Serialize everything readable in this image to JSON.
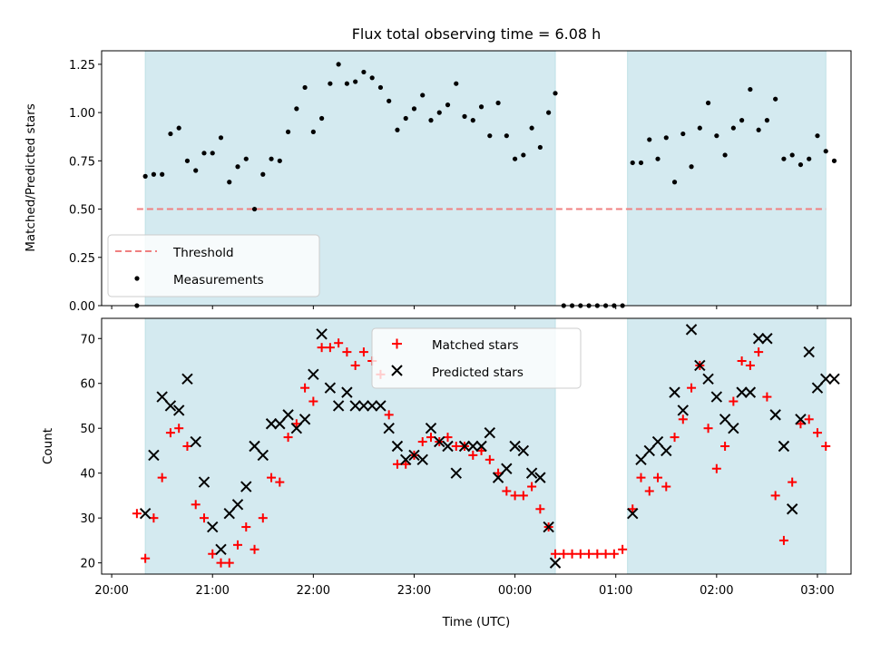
{
  "chart_data": [
    {
      "type": "scatter",
      "title": "Flux total observing time = 6.08 h",
      "ylabel": "Matched/Predicted stars",
      "ylim": [
        0,
        1.32
      ],
      "yticks": [
        0,
        0.25,
        0.5,
        0.75,
        1.0,
        1.25
      ],
      "ytick_labels": [
        "0.00",
        "0.25",
        "0.50",
        "0.75",
        "1.00",
        "1.25"
      ],
      "threshold": {
        "name": "Threshold",
        "value": 0.5,
        "x_range": [
          "20:15",
          "03:05"
        ],
        "color": "#f08080"
      },
      "shaded_intervals": [
        [
          "20:20",
          "00:24"
        ],
        [
          "01:07",
          "03:05"
        ]
      ],
      "shade_color": "#d4eaf0",
      "legend": [
        "Threshold",
        "Measurements"
      ],
      "legend_location": "lower left",
      "series": [
        {
          "name": "Measurements",
          "color": "#000000",
          "points": [
            [
              "20:15",
              0.0
            ],
            [
              "20:20",
              0.67
            ],
            [
              "20:25",
              0.68
            ],
            [
              "20:30",
              0.68
            ],
            [
              "20:35",
              0.89
            ],
            [
              "20:40",
              0.92
            ],
            [
              "20:45",
              0.75
            ],
            [
              "20:50",
              0.7
            ],
            [
              "20:55",
              0.79
            ],
            [
              "21:00",
              0.79
            ],
            [
              "21:05",
              0.87
            ],
            [
              "21:10",
              0.64
            ],
            [
              "21:15",
              0.72
            ],
            [
              "21:20",
              0.76
            ],
            [
              "21:25",
              0.5
            ],
            [
              "21:30",
              0.68
            ],
            [
              "21:35",
              0.76
            ],
            [
              "21:40",
              0.75
            ],
            [
              "21:45",
              0.9
            ],
            [
              "21:50",
              1.02
            ],
            [
              "21:55",
              1.13
            ],
            [
              "22:00",
              0.9
            ],
            [
              "22:05",
              0.97
            ],
            [
              "22:10",
              1.15
            ],
            [
              "22:15",
              1.25
            ],
            [
              "22:20",
              1.15
            ],
            [
              "22:25",
              1.16
            ],
            [
              "22:30",
              1.21
            ],
            [
              "22:35",
              1.18
            ],
            [
              "22:40",
              1.13
            ],
            [
              "22:45",
              1.06
            ],
            [
              "22:50",
              0.91
            ],
            [
              "22:55",
              0.97
            ],
            [
              "23:00",
              1.02
            ],
            [
              "23:05",
              1.09
            ],
            [
              "23:10",
              0.96
            ],
            [
              "23:15",
              1.0
            ],
            [
              "23:20",
              1.04
            ],
            [
              "23:25",
              1.15
            ],
            [
              "23:30",
              0.98
            ],
            [
              "23:35",
              0.96
            ],
            [
              "23:40",
              1.03
            ],
            [
              "23:45",
              0.88
            ],
            [
              "23:50",
              1.05
            ],
            [
              "23:55",
              0.88
            ],
            [
              "00:00",
              0.76
            ],
            [
              "00:05",
              0.78
            ],
            [
              "00:10",
              0.92
            ],
            [
              "00:15",
              0.82
            ],
            [
              "00:20",
              1.0
            ],
            [
              "00:24",
              1.1
            ],
            [
              "00:29",
              0.0
            ],
            [
              "00:34",
              0.0
            ],
            [
              "00:39",
              0.0
            ],
            [
              "00:44",
              0.0
            ],
            [
              "00:49",
              0.0
            ],
            [
              "00:54",
              0.0
            ],
            [
              "00:59",
              0.0
            ],
            [
              "01:04",
              0.0
            ],
            [
              "01:10",
              0.74
            ],
            [
              "01:15",
              0.74
            ],
            [
              "01:20",
              0.86
            ],
            [
              "01:25",
              0.76
            ],
            [
              "01:30",
              0.87
            ],
            [
              "01:35",
              0.64
            ],
            [
              "01:40",
              0.89
            ],
            [
              "01:45",
              0.72
            ],
            [
              "01:50",
              0.92
            ],
            [
              "01:55",
              1.05
            ],
            [
              "02:00",
              0.88
            ],
            [
              "02:05",
              0.78
            ],
            [
              "02:10",
              0.92
            ],
            [
              "02:15",
              0.96
            ],
            [
              "02:20",
              1.12
            ],
            [
              "02:25",
              0.91
            ],
            [
              "02:30",
              0.96
            ],
            [
              "02:35",
              1.07
            ],
            [
              "02:40",
              0.76
            ],
            [
              "02:45",
              0.78
            ],
            [
              "02:50",
              0.73
            ],
            [
              "02:55",
              0.76
            ],
            [
              "03:00",
              0.88
            ],
            [
              "03:05",
              0.8
            ],
            [
              "03:10",
              0.75
            ]
          ]
        }
      ]
    },
    {
      "type": "scatter",
      "xlabel": "Time (UTC)",
      "ylabel": "Count",
      "ylim": [
        17.5,
        74.5
      ],
      "yticks": [
        20,
        30,
        40,
        50,
        60,
        70
      ],
      "ytick_labels": [
        "20",
        "30",
        "40",
        "50",
        "60",
        "70"
      ],
      "xticks": [
        "20:00",
        "21:00",
        "22:00",
        "23:00",
        "00:00",
        "01:00",
        "02:00",
        "03:00"
      ],
      "xlim": [
        "19:54",
        "03:20"
      ],
      "shaded_intervals": [
        [
          "20:20",
          "00:24"
        ],
        [
          "01:07",
          "03:05"
        ]
      ],
      "shade_color": "#d4eaf0",
      "legend": [
        "Matched stars",
        "Predicted stars"
      ],
      "legend_location": "upper center",
      "series": [
        {
          "name": "Matched stars",
          "marker": "plus",
          "color": "#ff0000",
          "points": [
            [
              "20:15",
              31
            ],
            [
              "20:20",
              21
            ],
            [
              "20:25",
              30
            ],
            [
              "20:30",
              39
            ],
            [
              "20:35",
              49
            ],
            [
              "20:40",
              50
            ],
            [
              "20:45",
              46
            ],
            [
              "20:50",
              33
            ],
            [
              "20:55",
              30
            ],
            [
              "21:00",
              22
            ],
            [
              "21:05",
              20
            ],
            [
              "21:10",
              20
            ],
            [
              "21:15",
              24
            ],
            [
              "21:20",
              28
            ],
            [
              "21:25",
              23
            ],
            [
              "21:30",
              30
            ],
            [
              "21:35",
              39
            ],
            [
              "21:40",
              38
            ],
            [
              "21:45",
              48
            ],
            [
              "21:50",
              51
            ],
            [
              "21:55",
              59
            ],
            [
              "22:00",
              56
            ],
            [
              "22:05",
              68
            ],
            [
              "22:10",
              68
            ],
            [
              "22:15",
              69
            ],
            [
              "22:20",
              67
            ],
            [
              "22:25",
              64
            ],
            [
              "22:30",
              67
            ],
            [
              "22:35",
              65
            ],
            [
              "22:40",
              62
            ],
            [
              "22:45",
              53
            ],
            [
              "22:50",
              42
            ],
            [
              "22:55",
              42
            ],
            [
              "23:00",
              44
            ],
            [
              "23:05",
              47
            ],
            [
              "23:10",
              48
            ],
            [
              "23:15",
              47
            ],
            [
              "23:20",
              48
            ],
            [
              "23:25",
              46
            ],
            [
              "23:30",
              46
            ],
            [
              "23:35",
              44
            ],
            [
              "23:40",
              45
            ],
            [
              "23:45",
              43
            ],
            [
              "23:50",
              40
            ],
            [
              "23:55",
              36
            ],
            [
              "00:00",
              35
            ],
            [
              "00:05",
              35
            ],
            [
              "00:10",
              37
            ],
            [
              "00:15",
              32
            ],
            [
              "00:20",
              28
            ],
            [
              "00:24",
              22
            ],
            [
              "00:29",
              22
            ],
            [
              "00:34",
              22
            ],
            [
              "00:39",
              22
            ],
            [
              "00:44",
              22
            ],
            [
              "00:49",
              22
            ],
            [
              "00:54",
              22
            ],
            [
              "00:59",
              22
            ],
            [
              "01:04",
              23
            ],
            [
              "01:10",
              32
            ],
            [
              "01:15",
              39
            ],
            [
              "01:20",
              36
            ],
            [
              "01:25",
              39
            ],
            [
              "01:30",
              37
            ],
            [
              "01:35",
              48
            ],
            [
              "01:40",
              52
            ],
            [
              "01:45",
              59
            ],
            [
              "01:50",
              64
            ],
            [
              "01:55",
              50
            ],
            [
              "02:00",
              41
            ],
            [
              "02:05",
              46
            ],
            [
              "02:10",
              56
            ],
            [
              "02:15",
              65
            ],
            [
              "02:20",
              64
            ],
            [
              "02:25",
              67
            ],
            [
              "02:30",
              57
            ],
            [
              "02:35",
              35
            ],
            [
              "02:40",
              25
            ],
            [
              "02:45",
              38
            ],
            [
              "02:50",
              51
            ],
            [
              "02:55",
              52
            ],
            [
              "03:00",
              49
            ],
            [
              "03:05",
              46
            ]
          ]
        },
        {
          "name": "Predicted stars",
          "marker": "x",
          "color": "#000000",
          "points": [
            [
              "20:20",
              31
            ],
            [
              "20:25",
              44
            ],
            [
              "20:30",
              57
            ],
            [
              "20:35",
              55
            ],
            [
              "20:40",
              54
            ],
            [
              "20:45",
              61
            ],
            [
              "20:50",
              47
            ],
            [
              "20:55",
              38
            ],
            [
              "21:00",
              28
            ],
            [
              "21:05",
              23
            ],
            [
              "21:10",
              31
            ],
            [
              "21:15",
              33
            ],
            [
              "21:20",
              37
            ],
            [
              "21:25",
              46
            ],
            [
              "21:30",
              44
            ],
            [
              "21:35",
              51
            ],
            [
              "21:40",
              51
            ],
            [
              "21:45",
              53
            ],
            [
              "21:50",
              50
            ],
            [
              "21:55",
              52
            ],
            [
              "22:00",
              62
            ],
            [
              "22:05",
              71
            ],
            [
              "22:10",
              59
            ],
            [
              "22:15",
              55
            ],
            [
              "22:20",
              58
            ],
            [
              "22:25",
              55
            ],
            [
              "22:30",
              55
            ],
            [
              "22:35",
              55
            ],
            [
              "22:40",
              55
            ],
            [
              "22:45",
              50
            ],
            [
              "22:50",
              46
            ],
            [
              "22:55",
              43
            ],
            [
              "23:00",
              44
            ],
            [
              "23:05",
              43
            ],
            [
              "23:10",
              50
            ],
            [
              "23:15",
              47
            ],
            [
              "23:20",
              46
            ],
            [
              "23:25",
              40
            ],
            [
              "23:30",
              46
            ],
            [
              "23:35",
              46
            ],
            [
              "23:40",
              46
            ],
            [
              "23:45",
              49
            ],
            [
              "23:50",
              39
            ],
            [
              "23:55",
              41
            ],
            [
              "00:00",
              46
            ],
            [
              "00:05",
              45
            ],
            [
              "00:10",
              40
            ],
            [
              "00:15",
              39
            ],
            [
              "00:20",
              28
            ],
            [
              "00:24",
              20
            ],
            [
              "01:10",
              31
            ],
            [
              "01:15",
              43
            ],
            [
              "01:20",
              45
            ],
            [
              "01:25",
              47
            ],
            [
              "01:30",
              45
            ],
            [
              "01:35",
              58
            ],
            [
              "01:40",
              54
            ],
            [
              "01:45",
              72
            ],
            [
              "01:50",
              64
            ],
            [
              "01:55",
              61
            ],
            [
              "02:00",
              57
            ],
            [
              "02:05",
              52
            ],
            [
              "02:10",
              50
            ],
            [
              "02:15",
              58
            ],
            [
              "02:20",
              58
            ],
            [
              "02:25",
              70
            ],
            [
              "02:30",
              70
            ],
            [
              "02:35",
              53
            ],
            [
              "02:40",
              46
            ],
            [
              "02:45",
              32
            ],
            [
              "02:50",
              52
            ],
            [
              "02:55",
              67
            ],
            [
              "03:00",
              59
            ],
            [
              "03:05",
              61
            ],
            [
              "03:10",
              61
            ]
          ]
        }
      ]
    }
  ]
}
